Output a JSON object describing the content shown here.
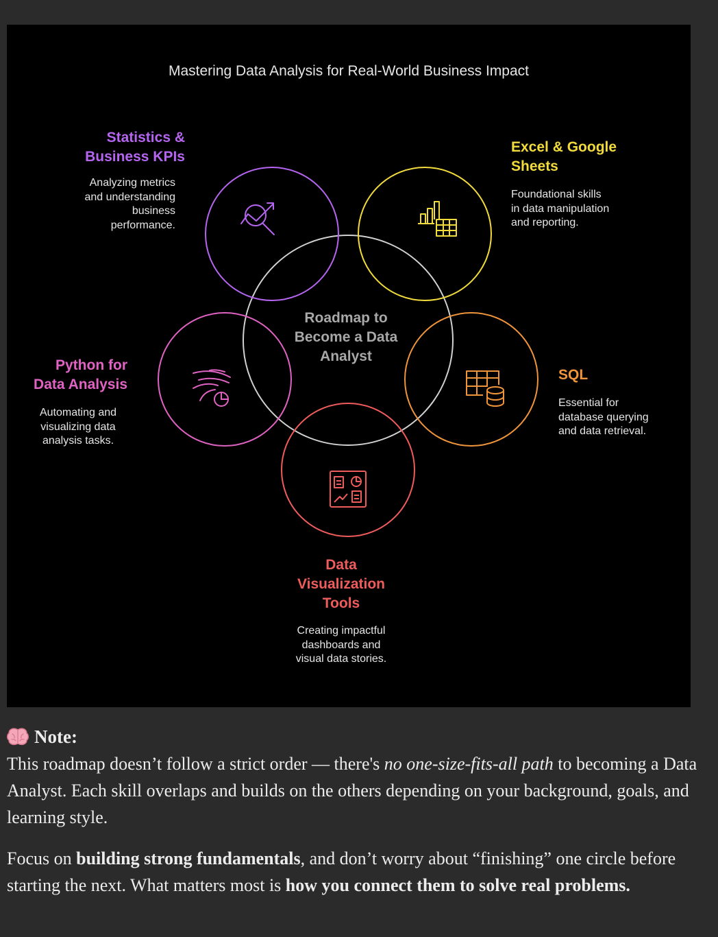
{
  "diagram": {
    "title": "Mastering Data Analysis for Real-World Business Impact",
    "center_label": [
      "Roadmap to",
      "Become a Data",
      "Analyst"
    ],
    "colors": {
      "center": "#d2d2d2",
      "purple": "#b565f0",
      "yellow": "#f2db3c",
      "pink": "#e063c4",
      "orange": "#f0953c",
      "red": "#ef5c5c"
    },
    "nodes": [
      {
        "id": "statistics",
        "icon": "chart-search-icon",
        "title": [
          "Statistics &",
          "Business KPIs"
        ],
        "desc": [
          "Analyzing metrics",
          "and understanding",
          "business",
          "performance."
        ]
      },
      {
        "id": "excel",
        "icon": "bar-chart-table-icon",
        "title": [
          "Excel & Google",
          "Sheets"
        ],
        "desc": [
          "Foundational skills",
          "in data manipulation",
          "and reporting."
        ]
      },
      {
        "id": "python",
        "icon": "wind-chart-icon",
        "title": [
          "Python for",
          "Data Analysis"
        ],
        "desc": [
          "Automating and",
          "visualizing data",
          "analysis tasks."
        ]
      },
      {
        "id": "sql",
        "icon": "table-database-icon",
        "title": [
          "SQL"
        ],
        "desc": [
          "Essential for",
          "database querying",
          "and data retrieval."
        ]
      },
      {
        "id": "dataviz",
        "icon": "dashboard-icon",
        "title": [
          "Data",
          "Visualization",
          "Tools"
        ],
        "desc": [
          "Creating impactful",
          "dashboards and",
          "visual data stories."
        ]
      }
    ]
  },
  "note": {
    "emoji": "brain-icon",
    "heading": "Note:",
    "p1": {
      "a": "This roadmap doesn’t follow a strict order — there's ",
      "b": "no one-size-fits-all path",
      "c": " to becoming a Data Analyst. Each skill overlaps and builds on the others depending on your background, goals, and learning style."
    },
    "p2": {
      "a": "Focus on ",
      "b": "building strong fundamentals",
      "c": ", and don’t worry about “finishing” one circle before starting the next. What matters most is ",
      "d": "how you connect them to solve real problems."
    }
  }
}
